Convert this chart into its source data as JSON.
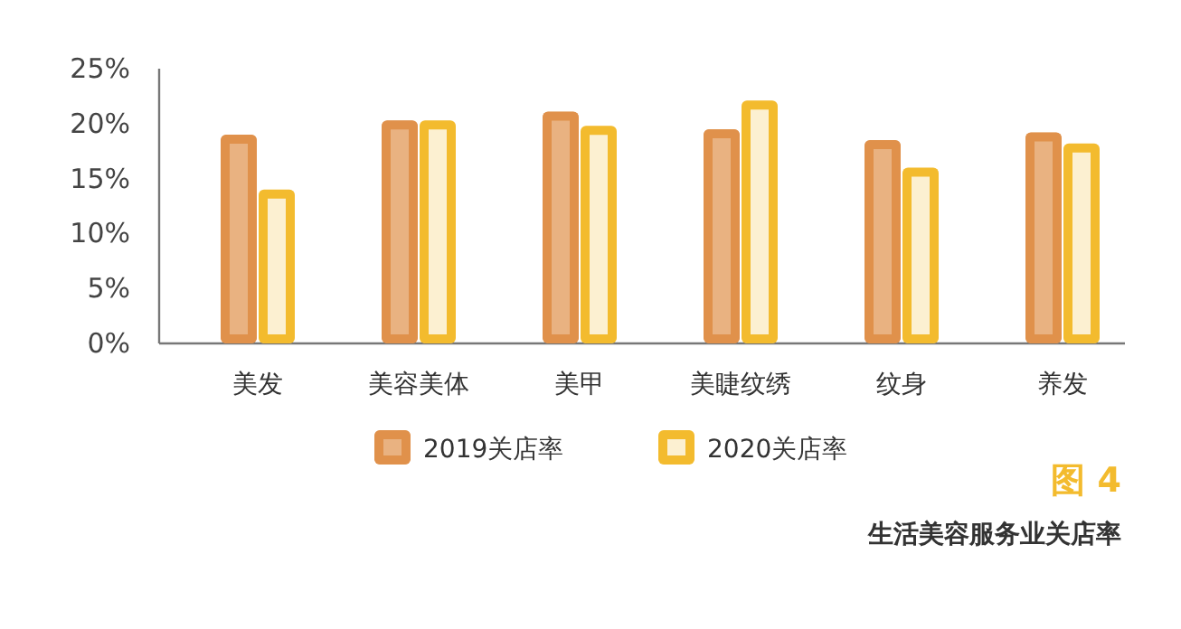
{
  "chart_data": {
    "type": "bar",
    "title": "生活美容服务业关店率",
    "annotations": [
      "图 4"
    ],
    "legend": "bottom",
    "categories": [
      "美发",
      "美容美体",
      "美甲",
      "美睫纹绣",
      "纹身",
      "养发"
    ],
    "series": [
      {
        "name": "2019关店率",
        "color": "#e0914b",
        "values": [
          19.0,
          20.3,
          21.1,
          19.5,
          18.5,
          19.2
        ]
      },
      {
        "name": "2020关店率",
        "color": "#f3bb2e",
        "values": [
          14.0,
          20.3,
          19.8,
          22.1,
          16.0,
          18.2
        ]
      }
    ],
    "ylim": [
      0,
      25
    ],
    "yticks": [
      {
        "value": 0,
        "label": "0%"
      },
      {
        "value": 5,
        "label": "5%"
      },
      {
        "value": 10,
        "label": "10%"
      },
      {
        "value": 15,
        "label": "15%"
      },
      {
        "value": 20,
        "label": "20%"
      },
      {
        "value": 25,
        "label": "25%"
      }
    ]
  }
}
